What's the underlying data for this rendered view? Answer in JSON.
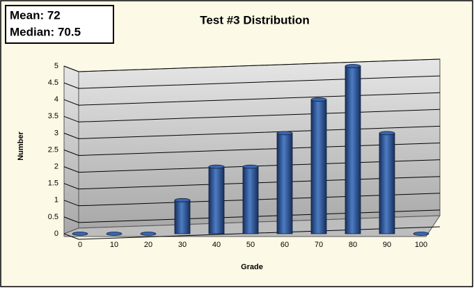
{
  "chart_data": {
    "type": "bar",
    "title": "Test #3 Distribution",
    "x_label": "Grade",
    "y_label": "Number",
    "annotations": [
      "Mean: 72",
      "Median: 70.5"
    ],
    "categories": [
      "0",
      "10",
      "20",
      "30",
      "40",
      "50",
      "60",
      "70",
      "80",
      "90",
      "100"
    ],
    "values": [
      0,
      0,
      0,
      1,
      2,
      2,
      3,
      4,
      5,
      3,
      0
    ],
    "color": "#24498f",
    "ylim": [
      0,
      5
    ],
    "yticks": [
      0,
      0.5,
      1,
      1.5,
      2,
      2.5,
      3,
      3.5,
      4,
      4.5,
      5
    ],
    "grid": true
  }
}
